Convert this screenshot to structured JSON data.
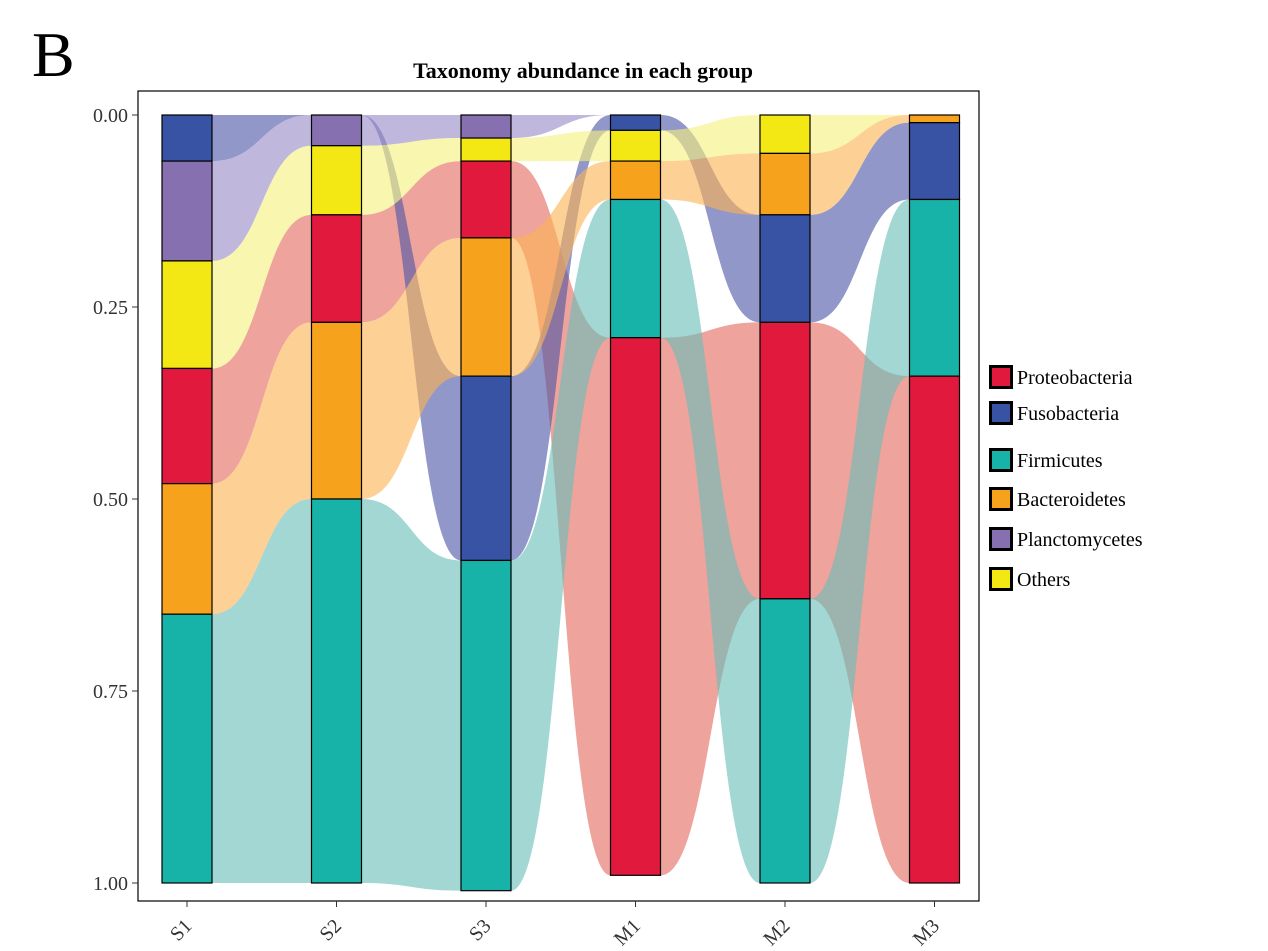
{
  "panel_label": "B",
  "chart_data": {
    "type": "alluvial",
    "title": "Taxonomy abundance in each group",
    "xlabel": "",
    "ylabel": "",
    "categories": [
      "S1",
      "S2",
      "S3",
      "M1",
      "M2",
      "M3"
    ],
    "y_ticks": [
      "0.00",
      "0.25",
      "0.50",
      "0.75",
      "1.00"
    ],
    "ylim": [
      0,
      1
    ],
    "y_reversed": true,
    "grid": false,
    "legend_position": "right",
    "series": [
      {
        "name": "Proteobacteria",
        "color": "#E0193D",
        "flow_color": "#E46A60",
        "values": [
          0.15,
          0.14,
          0.1,
          0.7,
          0.36,
          0.66
        ]
      },
      {
        "name": "Fusobacteria",
        "color": "#3853A4",
        "flow_color": "#4E57A6",
        "values": [
          0.06,
          0.0,
          0.24,
          0.02,
          0.14,
          0.1
        ]
      },
      {
        "name": "Firmicutes",
        "color": "#17B3A8",
        "flow_color": "#69BEB8",
        "values": [
          0.35,
          0.5,
          0.43,
          0.18,
          0.37,
          0.23
        ]
      },
      {
        "name": "Bacteroidetes",
        "color": "#F6A21C",
        "flow_color": "#FCB355",
        "values": [
          0.17,
          0.23,
          0.18,
          0.05,
          0.08,
          0.01
        ]
      },
      {
        "name": "Planctomycetes",
        "color": "#8670B0",
        "flow_color": "#9A8DC6",
        "values": [
          0.13,
          0.04,
          0.03,
          0.0,
          0.0,
          0.0
        ]
      },
      {
        "name": "Others",
        "color": "#F3E814",
        "flow_color": "#F6F07E",
        "values": [
          0.14,
          0.09,
          0.03,
          0.04,
          0.05,
          0.0
        ]
      }
    ],
    "stack_order": [
      [
        "Fusobacteria",
        "Planctomycetes",
        "Others",
        "Proteobacteria",
        "Bacteroidetes",
        "Firmicutes"
      ],
      [
        "Fusobacteria",
        "Planctomycetes",
        "Others",
        "Proteobacteria",
        "Bacteroidetes",
        "Firmicutes"
      ],
      [
        "Planctomycetes",
        "Others",
        "Proteobacteria",
        "Bacteroidetes",
        "Fusobacteria",
        "Firmicutes"
      ],
      [
        "Planctomycetes",
        "Fusobacteria",
        "Others",
        "Bacteroidetes",
        "Firmicutes",
        "Proteobacteria"
      ],
      [
        "Planctomycetes",
        "Others",
        "Bacteroidetes",
        "Fusobacteria",
        "Proteobacteria",
        "Firmicutes"
      ],
      [
        "Planctomycetes",
        "Others",
        "Bacteroidetes",
        "Fusobacteria",
        "Firmicutes",
        "Proteobacteria"
      ]
    ]
  }
}
